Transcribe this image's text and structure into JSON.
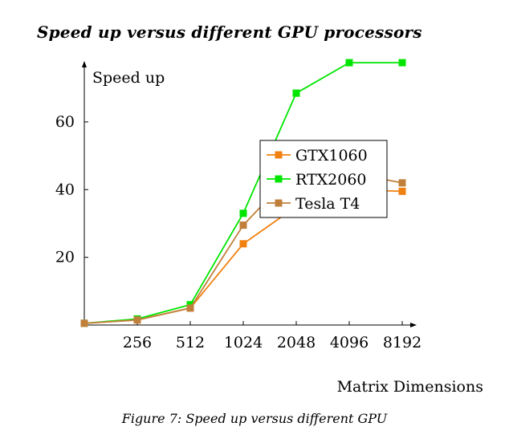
{
  "chart_data": {
    "type": "line",
    "title": "Speed up versus different GPU processors",
    "xlabel": "Matrix Dimensions",
    "ylabel": "Speed up",
    "categories": [
      "",
      "256",
      "512",
      "1024",
      "2048",
      "4096",
      "8192"
    ],
    "ylim": [
      0,
      78
    ],
    "yticks": [
      20,
      40,
      60
    ],
    "grid": false,
    "legend_position": "center-right",
    "series": [
      {
        "name": "GTX1060",
        "color": "#f08010",
        "values": [
          0.5,
          1.5,
          5.0,
          24.0,
          35.0,
          40.0,
          39.5
        ]
      },
      {
        "name": "RTX2060",
        "color": "#00e600",
        "values": [
          0.5,
          1.8,
          6.0,
          33.0,
          68.5,
          77.5,
          77.5
        ]
      },
      {
        "name": "Tesla T4",
        "color": "#c0803c",
        "values": [
          0.5,
          1.5,
          5.0,
          29.5,
          46.0,
          45.0,
          42.0
        ]
      }
    ]
  },
  "caption": "Figure 7: Speed up versus different GPU"
}
